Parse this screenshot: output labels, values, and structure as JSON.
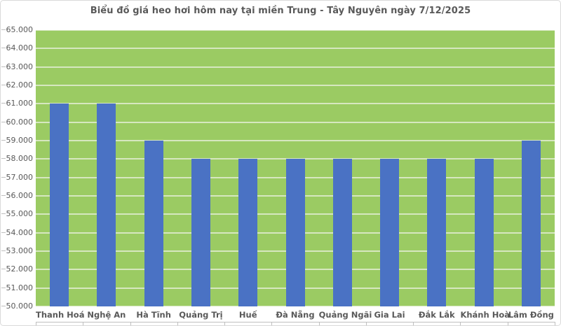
{
  "chart": {
    "colors": {
      "plot_bg": "#9BCB63",
      "bar": "#4A72C4",
      "gridline": "#D6E7C0",
      "axis_text": "#595959",
      "axis_line": "#BFBFBF",
      "frame_border": "#D9D9D9",
      "background": "#FFFFFF"
    }
  },
  "chart_data": {
    "type": "bar",
    "title": "Biểu đồ giá heo hơi hôm nay tại miền Trung - Tây Nguyên ngày 7/12/2025",
    "categories": [
      "Thanh Hoá",
      "Nghệ An",
      "Hà Tĩnh",
      "Quảng Trị",
      "Huế",
      "Đà Nẵng",
      "Quảng Ngãi",
      "Gia Lai",
      "Đắk Lắk",
      "Khánh Hoà",
      "Lâm Đồng"
    ],
    "values": [
      61000,
      61000,
      59000,
      58000,
      58000,
      58000,
      58000,
      58000,
      58000,
      58000,
      59000
    ],
    "xlabel": "",
    "ylabel": "",
    "ylim": [
      50000,
      65000
    ],
    "ytick_step": 1000,
    "ytick_labels": [
      "50.000",
      "51.000",
      "52.000",
      "53.000",
      "54.000",
      "55.000",
      "56.000",
      "57.000",
      "58.000",
      "59.000",
      "60.000",
      "61.000",
      "62.000",
      "63.000",
      "64.000",
      "65.000"
    ],
    "grid": true,
    "legend": false
  }
}
